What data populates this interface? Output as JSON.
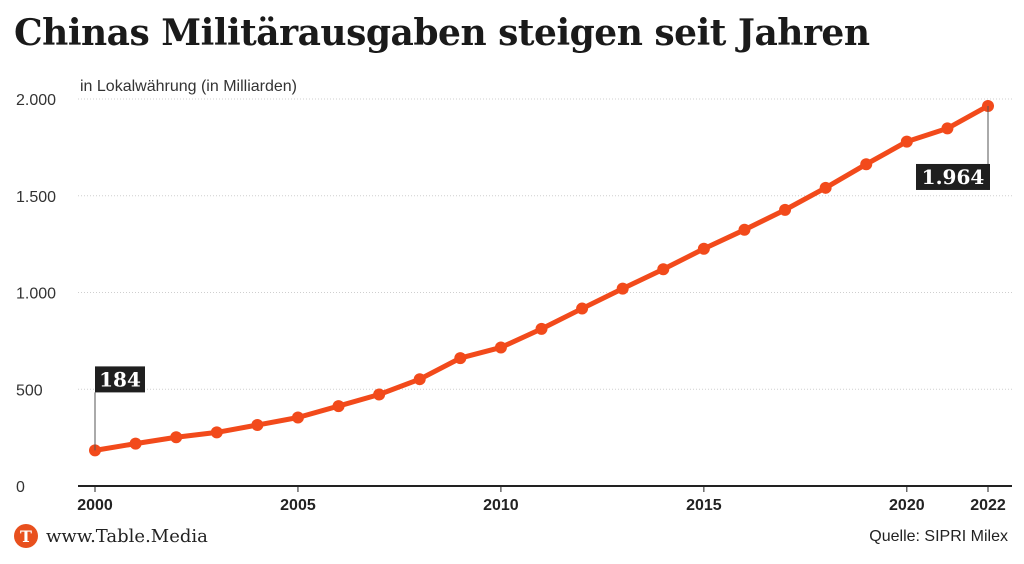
{
  "title": "Chinas Militärausgaben steigen seit Jahren",
  "brand": {
    "logo_letter": "T",
    "site": "www.Table.Media",
    "accent": "#f24a1b",
    "logo_color": "#e8501e"
  },
  "source": "Quelle: SIPRI Milex",
  "chart_data": {
    "type": "line",
    "title": "Chinas Militärausgaben steigen seit Jahren",
    "ylabel": "in Lokalwährung (in Milliarden)",
    "xlabel": "",
    "ylim": [
      0,
      2000
    ],
    "xlim": [
      2000,
      2022
    ],
    "yticks": [
      0,
      500,
      1000,
      1500,
      2000
    ],
    "ytick_labels": [
      "0",
      "500",
      "1.000",
      "1.500",
      "2.000"
    ],
    "xticks": [
      2000,
      2005,
      2010,
      2015,
      2020,
      2022
    ],
    "xtick_labels": [
      "2000",
      "2005",
      "2010",
      "2015",
      "2020",
      "2022"
    ],
    "grid": "horizontal dotted",
    "x": [
      2000,
      2001,
      2002,
      2003,
      2004,
      2005,
      2006,
      2007,
      2008,
      2009,
      2010,
      2011,
      2012,
      2013,
      2014,
      2015,
      2016,
      2017,
      2018,
      2019,
      2020,
      2021,
      2022
    ],
    "series": [
      {
        "values": [
          184,
          219,
          252,
          277,
          315,
          354,
          413,
          473,
          552,
          661,
          716,
          812,
          917,
          1020,
          1120,
          1226,
          1324,
          1427,
          1541,
          1663,
          1780,
          1848,
          1964
        ],
        "color": "#f24a1b"
      }
    ],
    "annotations": [
      {
        "x": 2000,
        "value": 184,
        "label": "184",
        "position": "above"
      },
      {
        "x": 2022,
        "value": 1964,
        "label": "1.964",
        "position": "below-left"
      }
    ]
  }
}
